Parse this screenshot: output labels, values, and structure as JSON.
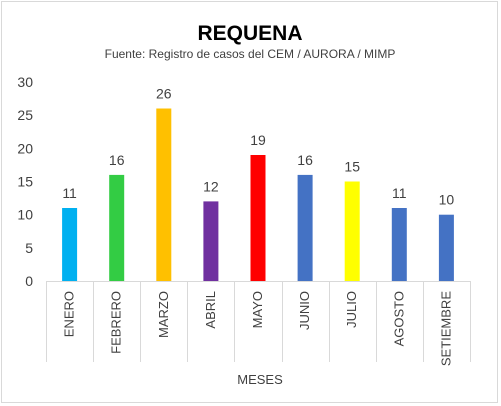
{
  "chart_data": {
    "type": "bar",
    "title": "REQUENA",
    "subtitle": "Fuente: Registro de casos del CEM / AURORA / MIMP",
    "xlabel": "MESES",
    "ylabel": "",
    "categories": [
      "ENERO",
      "FEBRERO",
      "MARZO",
      "ABRIL",
      "MAYO",
      "JUNIO",
      "JULIO",
      "AGOSTO",
      "SETIEMBRE"
    ],
    "values": [
      11,
      16,
      26,
      12,
      19,
      16,
      15,
      11,
      10
    ],
    "colors": [
      "#00b0f0",
      "#33cc44",
      "#ffc000",
      "#7030a0",
      "#ff0000",
      "#4472c4",
      "#ffff00",
      "#4472c4",
      "#4472c4"
    ],
    "ylim": [
      0,
      30
    ],
    "yticks": [
      0,
      5,
      10,
      15,
      20,
      25,
      30
    ],
    "grid": false,
    "legend": "none",
    "data_labels": true
  }
}
